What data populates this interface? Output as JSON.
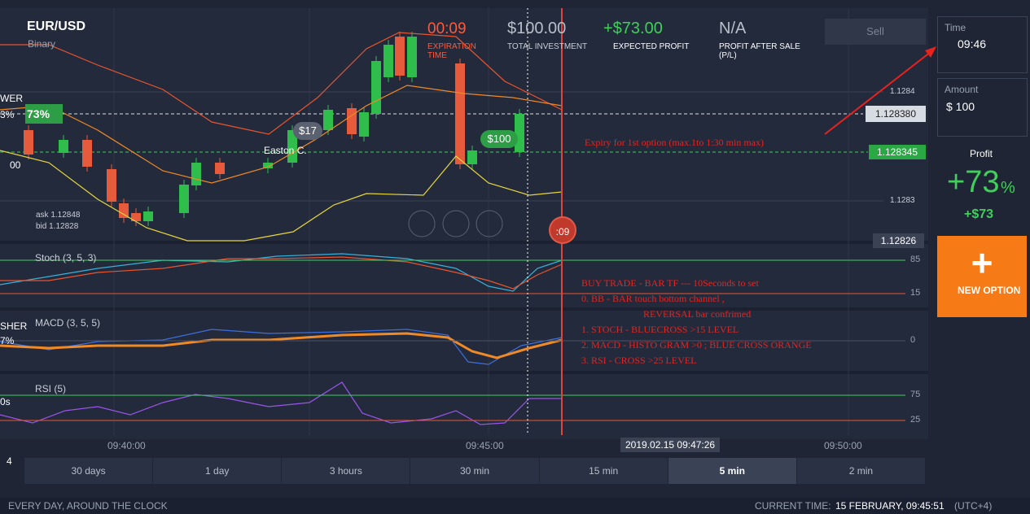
{
  "header": {
    "asset": "EUR/USD",
    "asset_type": "Binary",
    "timer": "00:09",
    "timer_label": "EXPIRATION TIME",
    "investment": "$100.00",
    "investment_label": "TOTAL INVESTMENT",
    "expected_profit": "+$73.00",
    "expected_profit_label": "EXPECTED PROFIT",
    "sale_profit": "N/A",
    "sale_profit_label": "PROFIT AFTER SALE (P/L)",
    "sell_button": "Sell"
  },
  "side_panel": {
    "time_label": "Time",
    "time": "09:46",
    "amount_label": "Amount",
    "amount": "$ 100",
    "profit_label": "Profit",
    "profit_value": "+73",
    "profit_unit": "%",
    "profit_amount": "+$73",
    "new_option": "NEW OPTION"
  },
  "chart": {
    "payout": "73%",
    "ask": "ask 1.12848",
    "bid": "bid 1.12828",
    "price_labels": [
      "1.1284",
      "1.1283"
    ],
    "current_price": "1.128380",
    "strike_price": "1.128345",
    "low_price": "1.12826",
    "trade_bubble": "$100",
    "other_bubble": "$17",
    "other_trader": "Easton C.",
    "countdown": ":09",
    "cursor_time": "2019.02.15 09:47:26",
    "time_labels": [
      "09:40:00",
      "09:45:00",
      "09:50:00"
    ]
  },
  "indicators": [
    {
      "name": "Stoch (3, 5, 3)",
      "levels": [
        "85",
        "15"
      ]
    },
    {
      "name": "MACD (3, 5, 5)",
      "levels": [
        "0"
      ]
    },
    {
      "name": "RSI (5)",
      "levels": [
        "75",
        "25"
      ]
    }
  ],
  "annotations": {
    "expiry": "Expiry for 1st option (max.1to 1:30 min max)",
    "strategy": [
      "BUY TRADE  - BAR TF --- 10Seconds to set",
      "0. BB        - BAR touch bottom channel ,",
      "REVERSAL bar confrimed",
      "1. STOCH - BLUECROSS >15 LEVEL",
      "2. MACD  - HISTO GRAM >0 ; BLUE CROSS ORANGE",
      "3. RSI      -  CROSS  >25 LEVEL"
    ]
  },
  "left_edge": [
    "WER",
    "3%",
    "00",
    "SHER",
    "7%",
    "0s",
    "4"
  ],
  "timeframes": [
    "30 days",
    "1 day",
    "3 hours",
    "30 min",
    "15 min",
    "5 min",
    "2 min"
  ],
  "active_timeframe": 5,
  "footer": {
    "tagline": "EVERY DAY, AROUND THE CLOCK",
    "current_time_label": "CURRENT TIME:",
    "current_time": "15 FEBRUARY, 09:45:51",
    "timezone": "(UTC+4)"
  }
}
